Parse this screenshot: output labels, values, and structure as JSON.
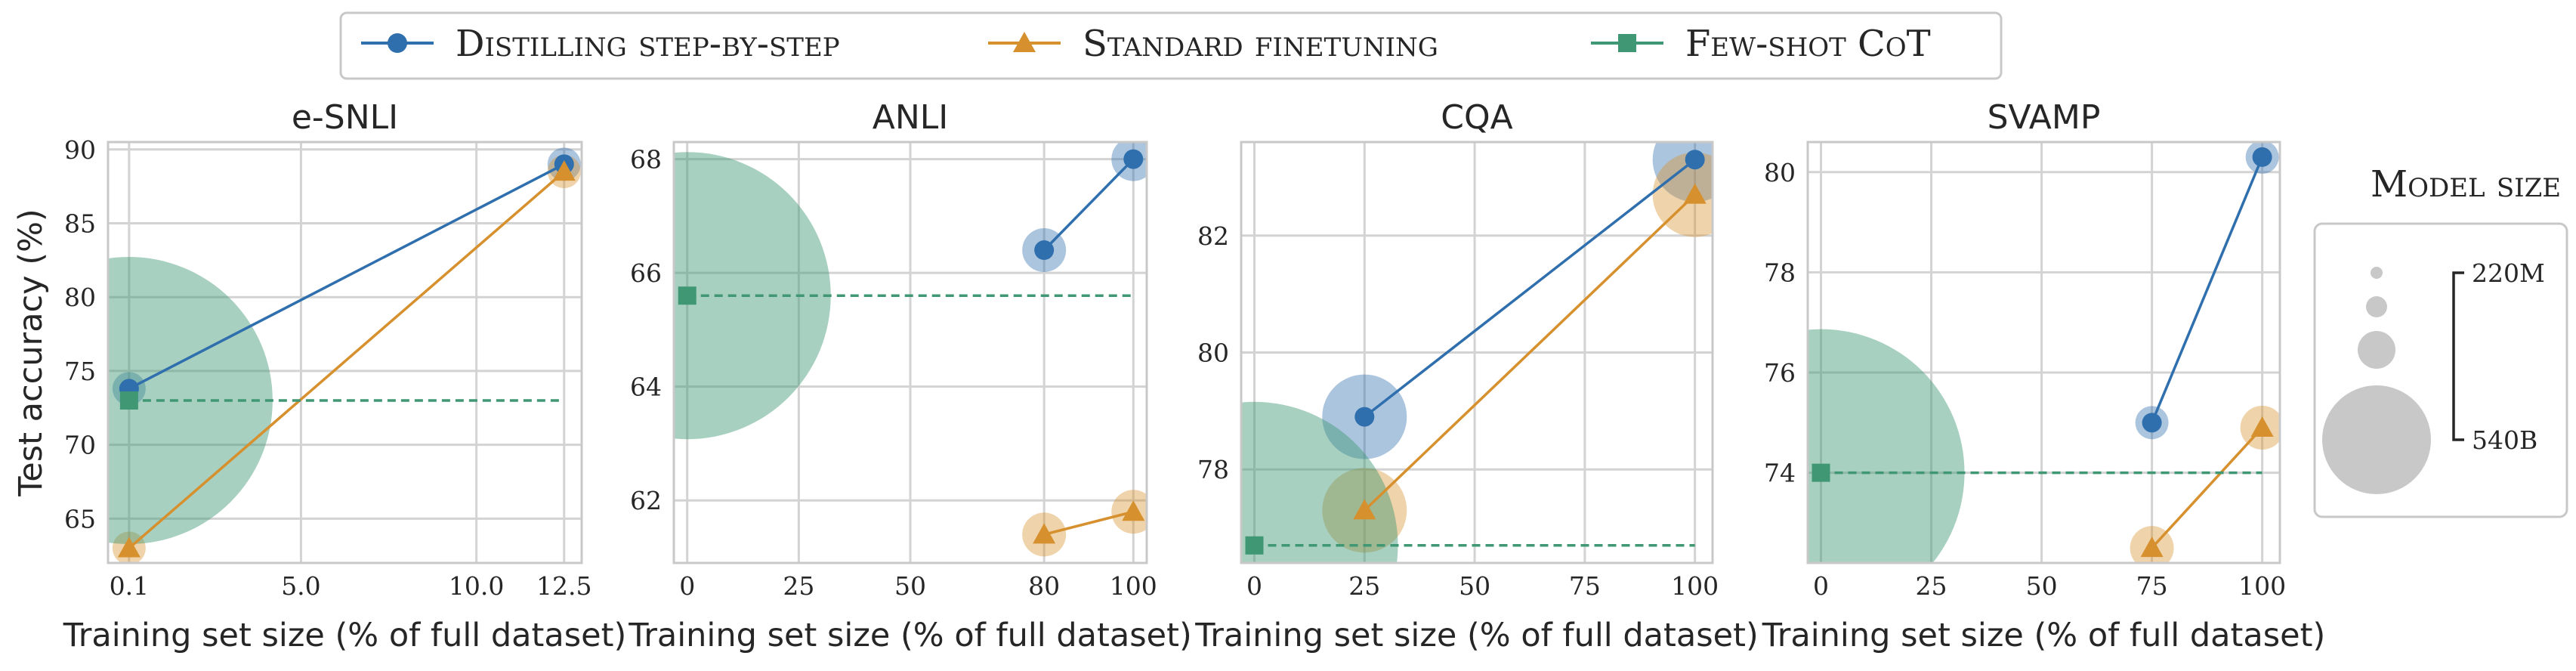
{
  "colors": {
    "distill": "#2f6fad",
    "standard": "#d6902e",
    "fewshot": "#3f9774",
    "size_bubble": "#c8c8c8",
    "grid": "#d3d3d3",
    "frame": "#c8c8c8"
  },
  "legend": {
    "items": [
      {
        "label": "Distilling step-by-step",
        "marker": "circle",
        "color": "#2f6fad"
      },
      {
        "label": "Standard finetuning",
        "marker": "triangle",
        "color": "#d6902e"
      },
      {
        "label": "Few-shot CoT",
        "marker": "square",
        "color": "#3f9774"
      }
    ]
  },
  "size_legend": {
    "title": "Model size",
    "top_label": "220M",
    "bottom_label": "540B",
    "bubble_count": 4
  },
  "chart_data": [
    {
      "type": "scatter",
      "title": "e-SNLI",
      "xlabel": "Training set size (% of full dataset)",
      "ylabel": "Test accuracy (%)",
      "xlim": [
        -0.5,
        13.0
      ],
      "ylim": [
        62.0,
        90.5
      ],
      "xticks": [
        0.1,
        5.0,
        10.0,
        12.5
      ],
      "xtick_labels": [
        "0.1",
        "5.0",
        "10.0",
        "12.5"
      ],
      "yticks": [
        65,
        70,
        75,
        80,
        85,
        90
      ],
      "ytick_labels": [
        "65",
        "70",
        "75",
        "80",
        "85",
        "90"
      ],
      "grid": true,
      "series": [
        {
          "name": "Distilling step-by-step",
          "marker": "circle",
          "line": "solid",
          "points": [
            {
              "x": 0.1,
              "y": 73.8,
              "model_size": "220M"
            },
            {
              "x": 12.5,
              "y": 89.0,
              "model_size": "220M"
            }
          ]
        },
        {
          "name": "Standard finetuning",
          "marker": "triangle",
          "line": "solid",
          "points": [
            {
              "x": 0.1,
              "y": 63.0,
              "model_size": "220M"
            },
            {
              "x": 12.5,
              "y": 88.5,
              "model_size": "220M"
            }
          ]
        },
        {
          "name": "Few-shot CoT",
          "marker": "square",
          "line": "dashed",
          "points": [
            {
              "x": 0.1,
              "y": 73.0,
              "model_size": "540B"
            }
          ],
          "dashed_to_x": 12.5
        }
      ]
    },
    {
      "type": "scatter",
      "title": "ANLI",
      "xlabel": "Training set size (% of full dataset)",
      "ylabel": "",
      "xlim": [
        -3,
        103
      ],
      "ylim": [
        60.9,
        68.3
      ],
      "xticks": [
        0,
        25,
        50,
        80,
        100
      ],
      "xtick_labels": [
        "0",
        "25",
        "50",
        "80",
        "100"
      ],
      "yticks": [
        62,
        64,
        66,
        68
      ],
      "ytick_labels": [
        "62",
        "64",
        "66",
        "68"
      ],
      "grid": true,
      "series": [
        {
          "name": "Distilling step-by-step",
          "marker": "circle",
          "line": "solid",
          "points": [
            {
              "x": 80,
              "y": 66.4,
              "model_size": "770M"
            },
            {
              "x": 100,
              "y": 68.0,
              "model_size": "770M"
            }
          ]
        },
        {
          "name": "Standard finetuning",
          "marker": "triangle",
          "line": "solid",
          "points": [
            {
              "x": 80,
              "y": 61.4,
              "model_size": "770M"
            },
            {
              "x": 100,
              "y": 61.8,
              "model_size": "770M"
            }
          ]
        },
        {
          "name": "Few-shot CoT",
          "marker": "square",
          "line": "dashed",
          "points": [
            {
              "x": 0,
              "y": 65.6,
              "model_size": "540B"
            }
          ],
          "dashed_to_x": 100
        }
      ]
    },
    {
      "type": "scatter",
      "title": "CQA",
      "xlabel": "Training set size (% of full dataset)",
      "ylabel": "",
      "xlim": [
        -3,
        104
      ],
      "ylim": [
        76.4,
        83.6
      ],
      "xticks": [
        0,
        25,
        50,
        75,
        100
      ],
      "xtick_labels": [
        "0",
        "25",
        "50",
        "75",
        "100"
      ],
      "yticks": [
        78,
        80,
        82
      ],
      "ytick_labels": [
        "78",
        "80",
        "82"
      ],
      "grid": true,
      "series": [
        {
          "name": "Distilling step-by-step",
          "marker": "circle",
          "line": "solid",
          "points": [
            {
              "x": 25,
              "y": 78.9,
              "model_size": "11B"
            },
            {
              "x": 100,
              "y": 83.3,
              "model_size": "11B"
            }
          ]
        },
        {
          "name": "Standard finetuning",
          "marker": "triangle",
          "line": "solid",
          "points": [
            {
              "x": 25,
              "y": 77.3,
              "model_size": "11B"
            },
            {
              "x": 100,
              "y": 82.7,
              "model_size": "11B"
            }
          ]
        },
        {
          "name": "Few-shot CoT",
          "marker": "square",
          "line": "dashed",
          "points": [
            {
              "x": 0,
              "y": 76.7,
              "model_size": "540B"
            }
          ],
          "dashed_to_x": 100
        }
      ]
    },
    {
      "type": "scatter",
      "title": "SVAMP",
      "xlabel": "Training set size (% of full dataset)",
      "ylabel": "",
      "xlim": [
        -3,
        104
      ],
      "ylim": [
        72.2,
        80.6
      ],
      "xticks": [
        0,
        25,
        50,
        75,
        100
      ],
      "xtick_labels": [
        "0",
        "25",
        "50",
        "75",
        "100"
      ],
      "yticks": [
        74,
        76,
        78,
        80
      ],
      "ytick_labels": [
        "74",
        "76",
        "78",
        "80"
      ],
      "grid": true,
      "series": [
        {
          "name": "Distilling step-by-step",
          "marker": "circle",
          "line": "solid",
          "points": [
            {
              "x": 75,
              "y": 75.0,
              "model_size": "220M"
            },
            {
              "x": 100,
              "y": 80.3,
              "model_size": "220M"
            }
          ]
        },
        {
          "name": "Standard finetuning",
          "marker": "triangle",
          "line": "solid",
          "points": [
            {
              "x": 75,
              "y": 72.5,
              "model_size": "770M"
            },
            {
              "x": 100,
              "y": 74.9,
              "model_size": "770M"
            }
          ]
        },
        {
          "name": "Few-shot CoT",
          "marker": "square",
          "line": "dashed",
          "points": [
            {
              "x": 0,
              "y": 74.0,
              "model_size": "540B"
            }
          ],
          "dashed_to_x": 100
        }
      ]
    }
  ]
}
